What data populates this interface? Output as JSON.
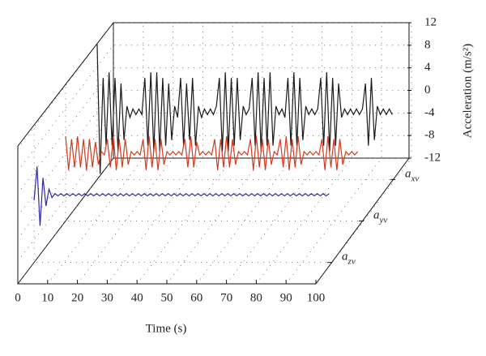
{
  "chart_data": {
    "type": "waterfall3d",
    "xlabel": "Time (s)",
    "ylabel": "Acceleration (m/s²)",
    "xlim": [
      0,
      100
    ],
    "xticks": [
      0,
      10,
      20,
      30,
      40,
      50,
      60,
      70,
      80,
      90,
      100
    ],
    "ylim": [
      -12,
      12
    ],
    "yticks": [
      -12,
      -8,
      -4,
      0,
      4,
      8,
      12
    ],
    "grid": true,
    "x": [
      0,
      1,
      2,
      3,
      4,
      5,
      6,
      7,
      8,
      9,
      10,
      11,
      12,
      13,
      14,
      15,
      16,
      17,
      18,
      19,
      20,
      21,
      22,
      23,
      24,
      25,
      26,
      27,
      28,
      29,
      30,
      31,
      32,
      33,
      34,
      35,
      36,
      37,
      38,
      39,
      40,
      41,
      42,
      43,
      44,
      45,
      46,
      47,
      48,
      49,
      50,
      51,
      52,
      53,
      54,
      55,
      56,
      57,
      58,
      59,
      60,
      61,
      62,
      63,
      64,
      65,
      66,
      67,
      68,
      69,
      70,
      71,
      72,
      73,
      74,
      75,
      76,
      77,
      78,
      79,
      80,
      81,
      82,
      83,
      84,
      85,
      86,
      87,
      88,
      89,
      90,
      91,
      92,
      93,
      94,
      95,
      96,
      97,
      98,
      99,
      100
    ],
    "series": [
      {
        "name": "axv",
        "color": "#1a1a1a",
        "values": [
          12,
          -11,
          6,
          -6,
          7,
          -6,
          6,
          -7,
          5,
          -5,
          1,
          -1,
          0.5,
          -0.5,
          0.5,
          -0.5,
          6,
          -6,
          7,
          -7,
          7,
          -7,
          6,
          -6,
          5,
          -5,
          1,
          -1,
          6,
          -6,
          5,
          -5,
          6,
          -6,
          1,
          -1,
          0.5,
          -0.5,
          0.5,
          -0.5,
          1,
          6,
          -7,
          7,
          -7,
          6,
          -6,
          6,
          -5,
          1,
          -0.5,
          0.5,
          6,
          -6,
          7,
          -7,
          6,
          -6,
          7,
          -6,
          1,
          -0.5,
          0.5,
          -1,
          6,
          -6,
          7,
          -6,
          6,
          -5,
          1,
          -0.5,
          0.5,
          -0.5,
          0.5,
          6,
          -6,
          7,
          -7,
          6,
          -6,
          5,
          -1,
          0.5,
          -0.5,
          0.5,
          -0.5,
          0.5,
          -0.5,
          0.5,
          5,
          -6,
          6,
          -5,
          1,
          -0.5,
          0.5,
          -0.5,
          0.5,
          -0.5,
          null
        ]
      },
      {
        "name": "ayv",
        "color": "#d5391d",
        "values": [
          3,
          -3,
          2.5,
          -2.5,
          3,
          -2.5,
          2.5,
          -3,
          2.5,
          -2.5,
          2,
          -2,
          0.3,
          -0.3,
          2.5,
          -2.5,
          3,
          -3,
          2.5,
          -2.5,
          2.5,
          -2,
          0.3,
          -0.3,
          0.3,
          -0.3,
          2.5,
          -3,
          3,
          -2.5,
          2.5,
          -3,
          2.5,
          -2,
          0.3,
          -0.3,
          0.3,
          -0.3,
          0.3,
          -0.3,
          2.5,
          -2.5,
          3,
          -2.5,
          2,
          -0.3,
          0.3,
          -0.3,
          0.3,
          -0.3,
          2.5,
          -3,
          2.5,
          -2.5,
          3,
          -2.5,
          2.5,
          -2,
          0.3,
          -0.3,
          0.3,
          -0.3,
          2.5,
          -3,
          3,
          -2.5,
          2.5,
          -3,
          2.5,
          -2,
          0.3,
          -0.3,
          2.5,
          -2.5,
          3,
          -3,
          2.5,
          -2.5,
          3,
          -2,
          0.3,
          -0.3,
          0.3,
          -0.3,
          0.3,
          -0.3,
          2.5,
          -3,
          3,
          -2.5,
          2.5,
          -3,
          2.5,
          -2,
          0.3,
          -0.3,
          0.3,
          -0.3,
          0.3,
          null,
          null
        ]
      },
      {
        "name": "azv",
        "color": "#2b2b9c",
        "values": [
          -1,
          5,
          -5.5,
          3,
          -2,
          1,
          -0.5,
          0.2,
          -0.2,
          0.2,
          -0.2,
          0.2,
          -0.2,
          0.2,
          -0.2,
          0.2,
          -0.2,
          0.2,
          -0.2,
          0.2,
          -0.2,
          0.2,
          -0.2,
          0.2,
          -0.2,
          0.2,
          -0.2,
          0.2,
          -0.2,
          0.2,
          -0.2,
          0.2,
          -0.2,
          0.2,
          -0.2,
          0.2,
          -0.2,
          0.2,
          -0.2,
          0.2,
          -0.2,
          0.2,
          -0.2,
          0.2,
          -0.2,
          0.2,
          -0.2,
          0.2,
          -0.2,
          0.2,
          -0.2,
          0.2,
          -0.2,
          0.2,
          -0.2,
          0.2,
          -0.2,
          0.2,
          -0.2,
          0.2,
          -0.2,
          0.2,
          -0.2,
          0.2,
          -0.2,
          0.2,
          -0.2,
          0.2,
          -0.2,
          0.2,
          -0.2,
          0.2,
          -0.2,
          0.2,
          -0.2,
          0.2,
          -0.2,
          0.2,
          -0.2,
          0.2,
          -0.2,
          0.2,
          -0.2,
          0.2,
          -0.2,
          0.2,
          -0.2,
          0.2,
          -0.2,
          0.2,
          -0.2,
          0.2,
          -0.2,
          0.2,
          -0.2,
          0.2,
          -0.2,
          0.2,
          -0.2,
          0.2,
          null
        ]
      }
    ]
  }
}
